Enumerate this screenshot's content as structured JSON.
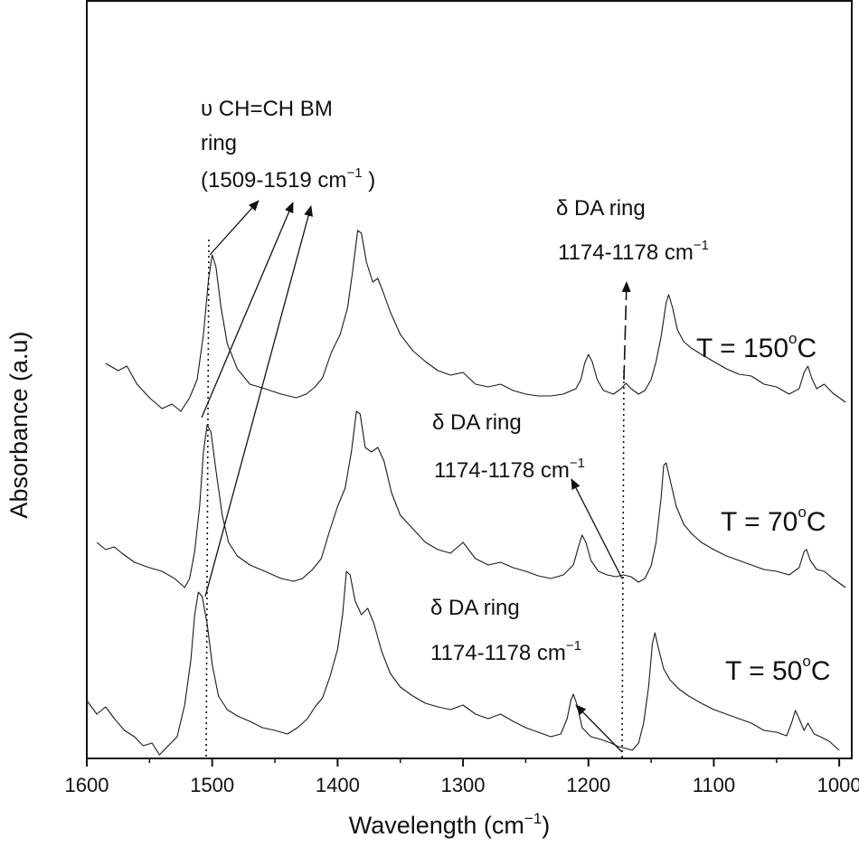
{
  "chart_data": {
    "type": "line",
    "xlabel": "Wavelength (cm",
    "xlabel_sup": "−1",
    "xlabel_end": ")",
    "ylabel": "Absorbance (a.u)",
    "xlim": [
      1600,
      990
    ],
    "x_reversed": true,
    "xticks": [
      "1600",
      "1500",
      "1400",
      "1300",
      "1200",
      "1100",
      "1000"
    ],
    "grid": false,
    "series": [
      {
        "name": "T = 150°C",
        "label_main": "T = 150",
        "label_deg": "o",
        "label_end": "C",
        "points": [
          [
            1585,
            402
          ],
          [
            1575,
            410
          ],
          [
            1568,
            405
          ],
          [
            1560,
            425
          ],
          [
            1550,
            440
          ],
          [
            1540,
            452
          ],
          [
            1532,
            447
          ],
          [
            1525,
            455
          ],
          [
            1518,
            440
          ],
          [
            1512,
            420
          ],
          [
            1507,
            370
          ],
          [
            1503,
            310
          ],
          [
            1500,
            282
          ],
          [
            1497,
            295
          ],
          [
            1493,
            340
          ],
          [
            1488,
            380
          ],
          [
            1480,
            408
          ],
          [
            1470,
            425
          ],
          [
            1458,
            430
          ],
          [
            1445,
            436
          ],
          [
            1433,
            440
          ],
          [
            1425,
            436
          ],
          [
            1418,
            428
          ],
          [
            1412,
            418
          ],
          [
            1405,
            390
          ],
          [
            1398,
            370
          ],
          [
            1392,
            340
          ],
          [
            1388,
            300
          ],
          [
            1384,
            255
          ],
          [
            1381,
            258
          ],
          [
            1377,
            290
          ],
          [
            1372,
            312
          ],
          [
            1368,
            308
          ],
          [
            1364,
            322
          ],
          [
            1358,
            345
          ],
          [
            1350,
            370
          ],
          [
            1340,
            388
          ],
          [
            1330,
            400
          ],
          [
            1320,
            410
          ],
          [
            1310,
            415
          ],
          [
            1300,
            412
          ],
          [
            1290,
            425
          ],
          [
            1280,
            428
          ],
          [
            1270,
            425
          ],
          [
            1260,
            432
          ],
          [
            1250,
            436
          ],
          [
            1240,
            438
          ],
          [
            1230,
            438
          ],
          [
            1220,
            436
          ],
          [
            1210,
            430
          ],
          [
            1206,
            420
          ],
          [
            1203,
            402
          ],
          [
            1200,
            392
          ],
          [
            1197,
            400
          ],
          [
            1193,
            420
          ],
          [
            1188,
            432
          ],
          [
            1180,
            436
          ],
          [
            1174,
            430
          ],
          [
            1170,
            424
          ],
          [
            1166,
            430
          ],
          [
            1160,
            436
          ],
          [
            1155,
            432
          ],
          [
            1150,
            420
          ],
          [
            1146,
            400
          ],
          [
            1142,
            372
          ],
          [
            1138,
            335
          ],
          [
            1136,
            326
          ],
          [
            1133,
            340
          ],
          [
            1129,
            365
          ],
          [
            1124,
            378
          ],
          [
            1118,
            385
          ],
          [
            1110,
            392
          ],
          [
            1100,
            400
          ],
          [
            1090,
            408
          ],
          [
            1080,
            414
          ],
          [
            1070,
            416
          ],
          [
            1060,
            425
          ],
          [
            1050,
            428
          ],
          [
            1040,
            436
          ],
          [
            1032,
            430
          ],
          [
            1028,
            412
          ],
          [
            1025,
            405
          ],
          [
            1022,
            418
          ],
          [
            1018,
            430
          ],
          [
            1012,
            425
          ],
          [
            1005,
            435
          ],
          [
            995,
            445
          ]
        ]
      },
      {
        "name": "T = 70°C",
        "label_main": "T = 70",
        "label_deg": "o",
        "label_end": "C",
        "points": [
          [
            1592,
            600
          ],
          [
            1585,
            608
          ],
          [
            1578,
            605
          ],
          [
            1572,
            612
          ],
          [
            1562,
            622
          ],
          [
            1550,
            628
          ],
          [
            1540,
            632
          ],
          [
            1530,
            640
          ],
          [
            1522,
            650
          ],
          [
            1518,
            640
          ],
          [
            1514,
            610
          ],
          [
            1510,
            560
          ],
          [
            1507,
            500
          ],
          [
            1504,
            470
          ],
          [
            1501,
            478
          ],
          [
            1497,
            520
          ],
          [
            1492,
            570
          ],
          [
            1487,
            600
          ],
          [
            1480,
            615
          ],
          [
            1470,
            625
          ],
          [
            1458,
            632
          ],
          [
            1445,
            640
          ],
          [
            1435,
            643
          ],
          [
            1428,
            640
          ],
          [
            1420,
            630
          ],
          [
            1413,
            618
          ],
          [
            1407,
            590
          ],
          [
            1400,
            560
          ],
          [
            1394,
            540
          ],
          [
            1389,
            500
          ],
          [
            1385,
            455
          ],
          [
            1382,
            458
          ],
          [
            1378,
            495
          ],
          [
            1373,
            500
          ],
          [
            1368,
            495
          ],
          [
            1363,
            510
          ],
          [
            1357,
            545
          ],
          [
            1350,
            570
          ],
          [
            1340,
            585
          ],
          [
            1330,
            600
          ],
          [
            1320,
            608
          ],
          [
            1310,
            612
          ],
          [
            1300,
            600
          ],
          [
            1290,
            618
          ],
          [
            1280,
            625
          ],
          [
            1270,
            622
          ],
          [
            1260,
            628
          ],
          [
            1250,
            632
          ],
          [
            1240,
            637
          ],
          [
            1230,
            640
          ],
          [
            1220,
            636
          ],
          [
            1212,
            625
          ],
          [
            1208,
            605
          ],
          [
            1205,
            592
          ],
          [
            1202,
            600
          ],
          [
            1198,
            620
          ],
          [
            1192,
            632
          ],
          [
            1185,
            636
          ],
          [
            1178,
            638
          ],
          [
            1172,
            636
          ],
          [
            1166,
            638
          ],
          [
            1160,
            644
          ],
          [
            1155,
            640
          ],
          [
            1150,
            626
          ],
          [
            1146,
            600
          ],
          [
            1142,
            550
          ],
          [
            1140,
            515
          ],
          [
            1138,
            512
          ],
          [
            1135,
            530
          ],
          [
            1130,
            560
          ],
          [
            1124,
            580
          ],
          [
            1118,
            590
          ],
          [
            1110,
            600
          ],
          [
            1100,
            608
          ],
          [
            1090,
            615
          ],
          [
            1080,
            620
          ],
          [
            1070,
            625
          ],
          [
            1060,
            630
          ],
          [
            1050,
            632
          ],
          [
            1040,
            636
          ],
          [
            1032,
            628
          ],
          [
            1028,
            610
          ],
          [
            1026,
            608
          ],
          [
            1023,
            620
          ],
          [
            1018,
            630
          ],
          [
            1012,
            632
          ],
          [
            1005,
            640
          ],
          [
            995,
            650
          ]
        ]
      },
      {
        "name": "T = 50°C",
        "label_main": "T = 50",
        "label_deg": "o",
        "label_end": "C",
        "points": [
          [
            1600,
            775
          ],
          [
            1592,
            790
          ],
          [
            1585,
            782
          ],
          [
            1578,
            795
          ],
          [
            1570,
            808
          ],
          [
            1562,
            815
          ],
          [
            1555,
            825
          ],
          [
            1548,
            822
          ],
          [
            1542,
            835
          ],
          [
            1535,
            825
          ],
          [
            1528,
            815
          ],
          [
            1522,
            780
          ],
          [
            1517,
            730
          ],
          [
            1514,
            680
          ],
          [
            1511,
            655
          ],
          [
            1508,
            660
          ],
          [
            1504,
            690
          ],
          [
            1500,
            735
          ],
          [
            1495,
            770
          ],
          [
            1488,
            785
          ],
          [
            1480,
            792
          ],
          [
            1470,
            798
          ],
          [
            1460,
            805
          ],
          [
            1450,
            808
          ],
          [
            1440,
            812
          ],
          [
            1432,
            805
          ],
          [
            1424,
            795
          ],
          [
            1418,
            782
          ],
          [
            1412,
            772
          ],
          [
            1406,
            748
          ],
          [
            1400,
            718
          ],
          [
            1396,
            680
          ],
          [
            1393,
            632
          ],
          [
            1390,
            636
          ],
          [
            1386,
            665
          ],
          [
            1381,
            680
          ],
          [
            1376,
            673
          ],
          [
            1371,
            690
          ],
          [
            1365,
            720
          ],
          [
            1358,
            745
          ],
          [
            1350,
            760
          ],
          [
            1340,
            770
          ],
          [
            1330,
            778
          ],
          [
            1320,
            782
          ],
          [
            1310,
            785
          ],
          [
            1300,
            780
          ],
          [
            1290,
            790
          ],
          [
            1280,
            795
          ],
          [
            1270,
            790
          ],
          [
            1260,
            798
          ],
          [
            1250,
            805
          ],
          [
            1240,
            810
          ],
          [
            1230,
            815
          ],
          [
            1222,
            812
          ],
          [
            1217,
            795
          ],
          [
            1214,
            775
          ],
          [
            1212,
            768
          ],
          [
            1209,
            780
          ],
          [
            1205,
            805
          ],
          [
            1198,
            815
          ],
          [
            1190,
            818
          ],
          [
            1182,
            822
          ],
          [
            1176,
            826
          ],
          [
            1170,
            828
          ],
          [
            1165,
            830
          ],
          [
            1160,
            822
          ],
          [
            1156,
            800
          ],
          [
            1152,
            760
          ],
          [
            1149,
            712
          ],
          [
            1147,
            700
          ],
          [
            1144,
            718
          ],
          [
            1140,
            740
          ],
          [
            1135,
            752
          ],
          [
            1128,
            762
          ],
          [
            1120,
            770
          ],
          [
            1110,
            778
          ],
          [
            1100,
            785
          ],
          [
            1090,
            790
          ],
          [
            1080,
            795
          ],
          [
            1070,
            800
          ],
          [
            1060,
            808
          ],
          [
            1050,
            810
          ],
          [
            1042,
            814
          ],
          [
            1038,
            800
          ],
          [
            1035,
            786
          ],
          [
            1032,
            795
          ],
          [
            1028,
            808
          ],
          [
            1025,
            800
          ],
          [
            1020,
            812
          ],
          [
            1015,
            815
          ],
          [
            1008,
            820
          ],
          [
            1000,
            830
          ]
        ]
      }
    ],
    "annotations": [
      {
        "line1": "υ CH=CH BM",
        "line2": "ring",
        "line3_main": "(1509-1519 cm",
        "line3_sup": "−1",
        "line3_end": " )"
      },
      {
        "line1": "δ DA ring",
        "line2_main": "1174-1178 cm",
        "line2_sup": "−1"
      },
      {
        "line1": "δ DA ring",
        "line2_main": "1174-1178 cm",
        "line2_sup": "−1"
      },
      {
        "line1": "δ DA ring",
        "line2_main": "1174-1178 cm",
        "line2_sup": "−1"
      }
    ]
  }
}
